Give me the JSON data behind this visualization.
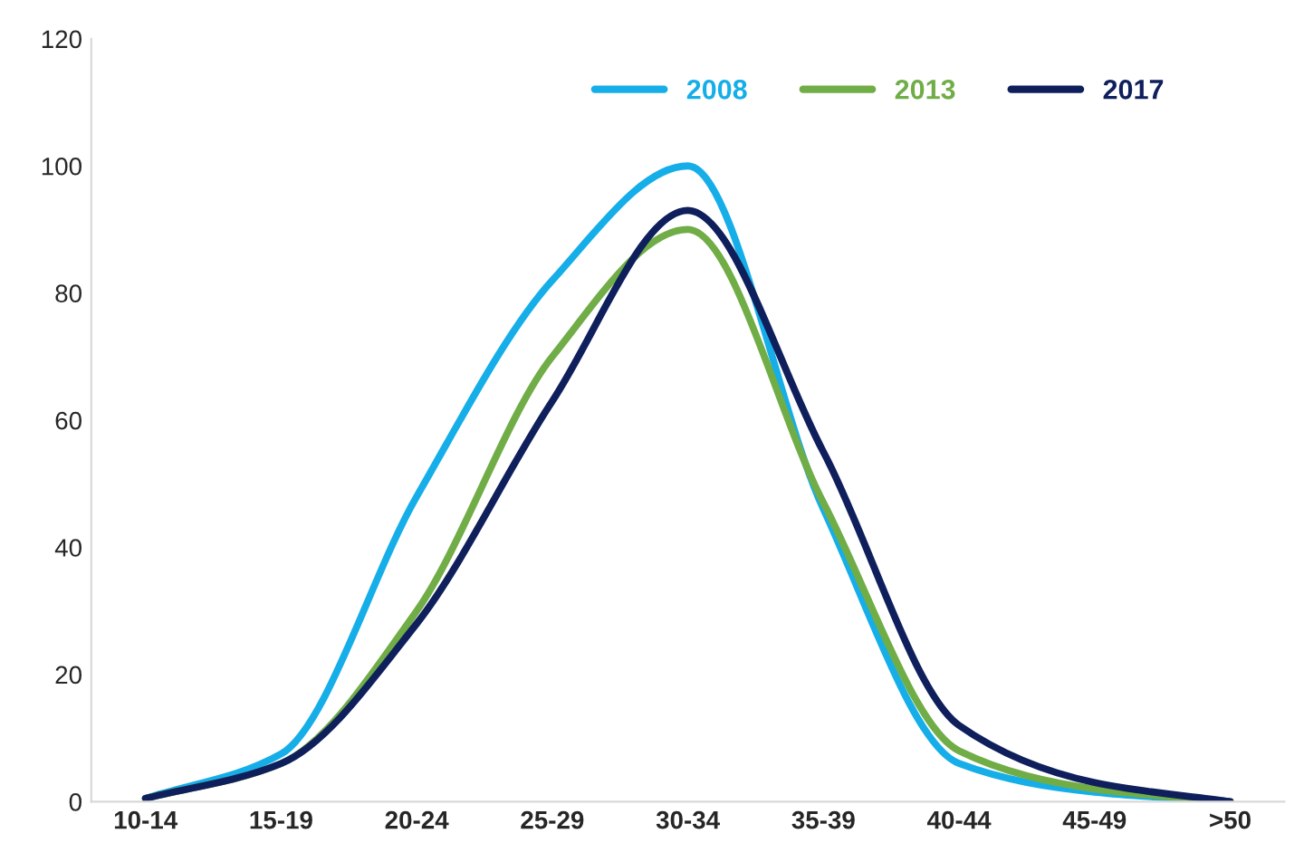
{
  "chart_data": {
    "type": "line",
    "categories": [
      "10-14",
      "15-19",
      "20-24",
      "25-29",
      "30-34",
      "35-39",
      "40-44",
      "45-49",
      ">50"
    ],
    "series": [
      {
        "name": "2008",
        "color": "#16aee8",
        "values": [
          0.5,
          7.5,
          48,
          82,
          100,
          46,
          6,
          1.5,
          0
        ]
      },
      {
        "name": "2013",
        "color": "#70ad47",
        "values": [
          0.5,
          6,
          30,
          70,
          90,
          47,
          8,
          2,
          0
        ]
      },
      {
        "name": "2017",
        "color": "#0f1f5c",
        "values": [
          0.5,
          6,
          28,
          63,
          93,
          55,
          12,
          3,
          0
        ]
      }
    ],
    "ylim": [
      0,
      120
    ],
    "yticks": [
      0,
      20,
      40,
      60,
      80,
      100,
      120
    ],
    "grid": false,
    "legend": "top right",
    "marker": "none",
    "line_style": "solid"
  }
}
